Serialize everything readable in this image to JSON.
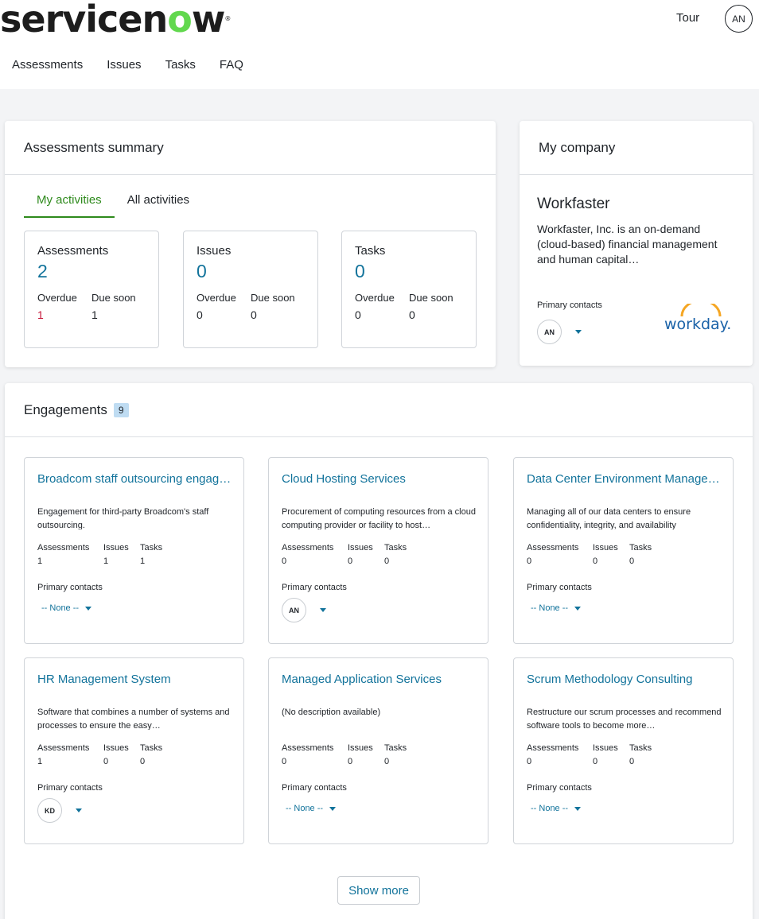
{
  "header": {
    "logo_pre": "servicen",
    "logo_o": "o",
    "logo_post": "w",
    "logo_reg": "®",
    "tour": "Tour",
    "user_initials": "AN",
    "nav": [
      "Assessments",
      "Issues",
      "Tasks",
      "FAQ"
    ]
  },
  "summary": {
    "title": "Assessments summary",
    "tabs": [
      "My activities",
      "All activities"
    ],
    "stats": [
      {
        "title": "Assessments",
        "count": "2",
        "overdue_label": "Overdue",
        "due_label": "Due soon",
        "overdue": "1",
        "due": "1"
      },
      {
        "title": "Issues",
        "count": "0",
        "overdue_label": "Overdue",
        "due_label": "Due soon",
        "overdue": "0",
        "due": "0"
      },
      {
        "title": "Tasks",
        "count": "0",
        "overdue_label": "Overdue",
        "due_label": "Due soon",
        "overdue": "0",
        "due": "0"
      }
    ]
  },
  "company": {
    "title": "My company",
    "name": "Workfaster",
    "description": "Workfaster, Inc. is an on-demand (cloud-based) financial management and human capital…",
    "primary_contacts_label": "Primary contacts",
    "contact_initials": "AN",
    "logo_text": "workday."
  },
  "engagements": {
    "title": "Engagements",
    "count": "9",
    "labels": {
      "assessments": "Assessments",
      "issues": "Issues",
      "tasks": "Tasks",
      "primary_contacts": "Primary contacts",
      "none": "-- None --"
    },
    "items": [
      {
        "title": "Broadcom staff outsourcing engagement",
        "desc": "Engagement for third-party Broadcom's staff outsourcing.",
        "assessments": "1",
        "issues": "1",
        "tasks": "1",
        "contact": ""
      },
      {
        "title": "Cloud Hosting Services",
        "desc": "Procurement of computing resources from a cloud computing provider or facility to host…",
        "assessments": "0",
        "issues": "0",
        "tasks": "0",
        "contact": "AN"
      },
      {
        "title": "Data Center Environment Management",
        "desc": "Managing all of our data centers to ensure confidentiality, integrity, and availability",
        "assessments": "0",
        "issues": "0",
        "tasks": "0",
        "contact": ""
      },
      {
        "title": "HR Management System",
        "desc": "Software that combines a number of systems and processes to ensure the easy…",
        "assessments": "1",
        "issues": "0",
        "tasks": "0",
        "contact": "KD"
      },
      {
        "title": "Managed Application Services",
        "desc": "(No description available)",
        "assessments": "0",
        "issues": "0",
        "tasks": "0",
        "contact": ""
      },
      {
        "title": "Scrum Methodology Consulting",
        "desc": "Restructure our scrum processes and recommend software tools to become more…",
        "assessments": "0",
        "issues": "0",
        "tasks": "0",
        "contact": ""
      }
    ],
    "show_more": "Show more"
  }
}
